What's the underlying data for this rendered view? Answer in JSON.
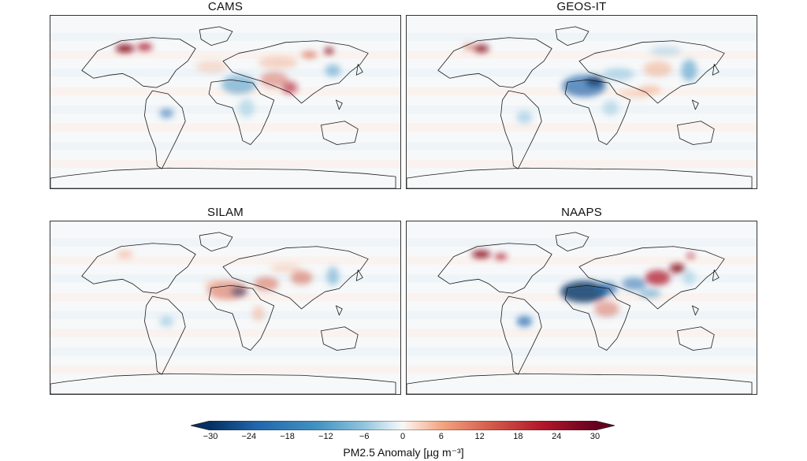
{
  "panels": [
    {
      "title": "CAMS"
    },
    {
      "title": "GEOS-IT"
    },
    {
      "title": "SILAM"
    },
    {
      "title": "NAAPS"
    }
  ],
  "colorbar": {
    "label": "PM2.5 Anomaly [µg m⁻³]",
    "ticks": [
      "−30",
      "−24",
      "−18",
      "−12",
      "−6",
      "0",
      "6",
      "12",
      "18",
      "24",
      "30"
    ],
    "min": -30,
    "max": 30,
    "colormap": "RdBu_r",
    "colors": {
      "negative_end": "#053061",
      "mid_blue": "#4393c3",
      "neutral": "#f7f7f7",
      "mid_red": "#f4a582",
      "positive_end": "#67001f"
    }
  }
}
